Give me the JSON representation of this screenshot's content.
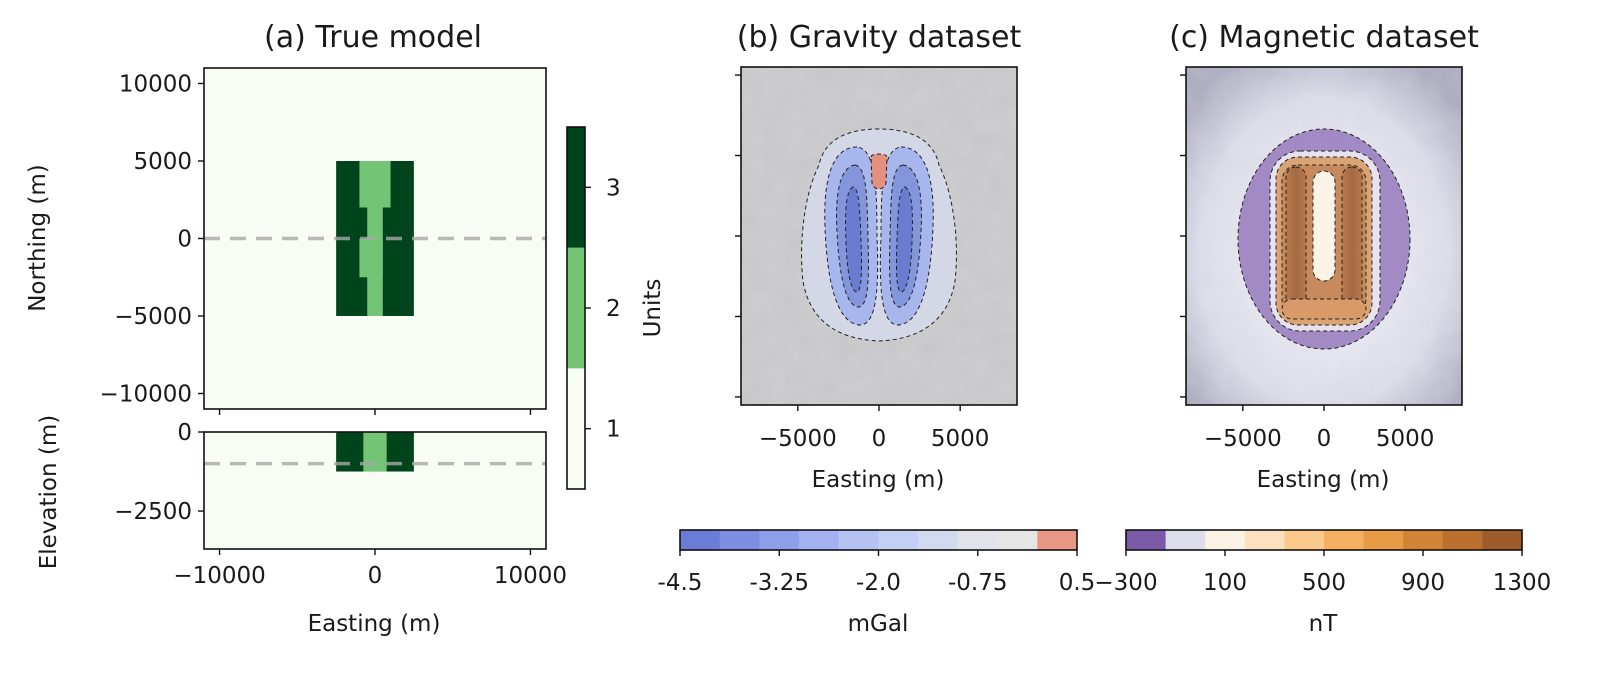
{
  "chart_data": [
    {
      "panel": "a",
      "type": "heatmap",
      "title": "(a) True model",
      "plan_view": {
        "xlabel": "",
        "ylabel": "Northing (m)",
        "xlim": [
          -11000,
          11000
        ],
        "ylim": [
          -11000,
          11000
        ],
        "xticks": [
          -10000,
          0,
          10000
        ],
        "yticks": [
          -10000,
          -5000,
          0,
          5000,
          10000
        ],
        "yticklabels": [
          "−10000",
          "−5000",
          "0",
          "5000",
          "10000"
        ],
        "profile_line_northing": 0,
        "blocks": [
          {
            "unit": 3,
            "x": [
              -2500,
              2500
            ],
            "y": [
              -5000,
              5000
            ]
          },
          {
            "unit": 2,
            "x": [
              -1000,
              1000
            ],
            "y": [
              2000,
              5000
            ]
          },
          {
            "unit": 2,
            "x": [
              -500,
              500
            ],
            "y": [
              -5000,
              2000
            ]
          },
          {
            "unit": 2,
            "x": [
              -1000,
              500
            ],
            "y": [
              -2500,
              0
            ]
          }
        ]
      },
      "section_view": {
        "xlabel": "Easting (m)",
        "ylabel": "Elevation (m)",
        "xlim": [
          -11000,
          11000
        ],
        "ylim": [
          -3700,
          0
        ],
        "xticks": [
          -10000,
          0,
          10000
        ],
        "xticklabels": [
          "−10000",
          "0",
          "10000"
        ],
        "yticks": [
          0,
          -2500
        ],
        "yticklabels": [
          "0",
          "−2500"
        ],
        "profile_line_elevation": -1000,
        "blocks": [
          {
            "unit": 3,
            "x": [
              -2500,
              2500
            ],
            "z": [
              -1250,
              0
            ]
          },
          {
            "unit": 2,
            "x": [
              -750,
              750
            ],
            "z": [
              -1250,
              0
            ]
          }
        ]
      },
      "colorbar": {
        "label": "Units",
        "ticks": [
          1,
          2,
          3
        ],
        "colors": [
          "#f7fcf5",
          "#74c476",
          "#00441b"
        ]
      }
    },
    {
      "panel": "b",
      "type": "heatmap",
      "title": "(b) Gravity dataset",
      "xlabel": "Easting (m)",
      "xlim": [
        -8500,
        8500
      ],
      "ylim": [
        -10500,
        10500
      ],
      "xticks": [
        -5000,
        0,
        5000
      ],
      "xticklabels": [
        "−5000",
        "0",
        "5000"
      ],
      "anomaly": "two negative lobes flanking a small positive anomaly at the top centre",
      "colorbar": {
        "label": "mGal",
        "range": [
          -4.5,
          0.5
        ],
        "ticks": [
          -4.5,
          -3.25,
          -2.0,
          -0.75,
          0.5
        ],
        "ticklabels": [
          "-4.5",
          "-3.25",
          "-2.0",
          "-0.75",
          "0.5"
        ],
        "colors": [
          "#6a7cd6",
          "#7d8ee2",
          "#8fa0ea",
          "#a2b2f0",
          "#b4c2f4",
          "#c4cff4",
          "#d2daf0",
          "#e0e3ea",
          "#e5e5e5",
          "#e99785"
        ]
      }
    },
    {
      "panel": "c",
      "type": "heatmap",
      "title": "(c) Magnetic dataset",
      "xlabel": "Easting (m)",
      "xlim": [
        -8500,
        8500
      ],
      "ylim": [
        -10500,
        10500
      ],
      "xticks": [
        -5000,
        0,
        5000
      ],
      "xticklabels": [
        "−5000",
        "0",
        "5000"
      ],
      "anomaly": "elongated positive anomaly with a low halo",
      "colorbar": {
        "label": "nT",
        "range": [
          -300,
          1300
        ],
        "ticks": [
          -300,
          100,
          500,
          900,
          1300
        ],
        "ticklabels": [
          "−300",
          "100",
          "500",
          "900",
          "1300"
        ],
        "colors": [
          "#7a5aa6",
          "#dcdceb",
          "#fbf2e6",
          "#fde0c0",
          "#fcc98c",
          "#f5b061",
          "#e89a44",
          "#d28434",
          "#bb7030",
          "#9e5c2c"
        ]
      }
    }
  ]
}
